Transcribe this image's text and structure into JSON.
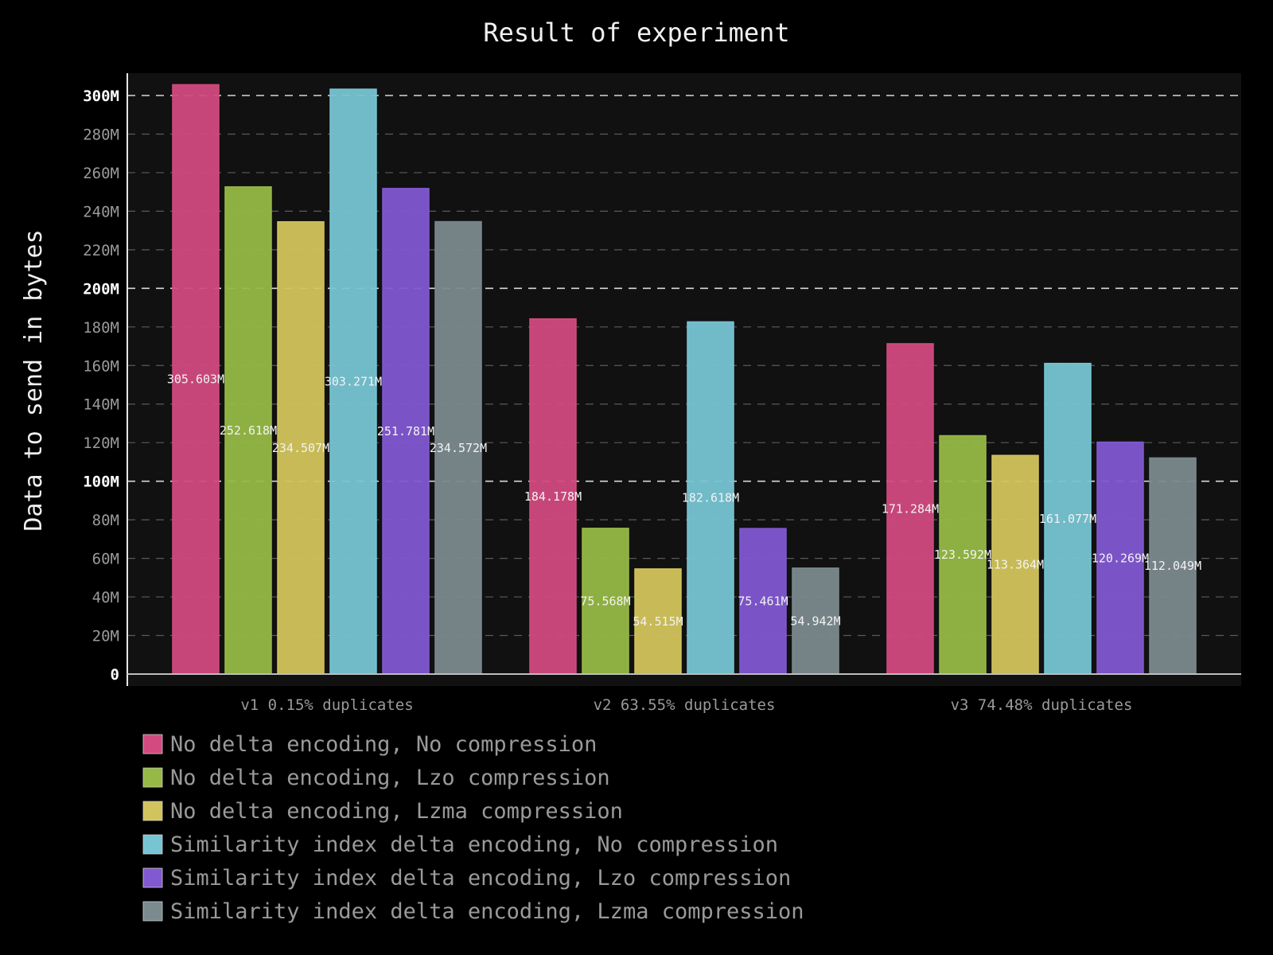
{
  "chart_data": {
    "type": "bar",
    "title": "Result of experiment",
    "ylabel": "Data to send in bytes",
    "xlabel": "",
    "categories": [
      "v1 0.15% duplicates",
      "v2 63.55% duplicates",
      "v3 74.48% duplicates"
    ],
    "ylim": [
      0,
      310000000
    ],
    "yticks": [
      0,
      20000000,
      40000000,
      60000000,
      80000000,
      100000000,
      120000000,
      140000000,
      160000000,
      180000000,
      200000000,
      220000000,
      240000000,
      260000000,
      280000000,
      300000000
    ],
    "ytick_labels": [
      "0",
      "20M",
      "40M",
      "60M",
      "80M",
      "100M",
      "120M",
      "140M",
      "160M",
      "180M",
      "200M",
      "220M",
      "240M",
      "260M",
      "280M",
      "300M"
    ],
    "major_yticks": [
      0,
      100000000,
      200000000,
      300000000
    ],
    "grid": true,
    "legend_position": "bottom",
    "series": [
      {
        "name": "No delta encoding, No compression",
        "color": "#d24a7f",
        "values": [
          305603000,
          184178000,
          171284000
        ],
        "labels": [
          "305.603M",
          "184.178M",
          "171.284M"
        ]
      },
      {
        "name": "No delta encoding, Lzo compression",
        "color": "#96b946",
        "values": [
          252618000,
          75568000,
          123592000
        ],
        "labels": [
          "252.618M",
          "75.568M",
          "123.592M"
        ]
      },
      {
        "name": "No delta encoding, Lzma compression",
        "color": "#d2c45c",
        "values": [
          234507000,
          54515000,
          113364000
        ],
        "labels": [
          "234.507M",
          "54.515M",
          "113.364M"
        ]
      },
      {
        "name": "Similarity index delta encoding, No compression",
        "color": "#77c4d3",
        "values": [
          303271000,
          182618000,
          161077000
        ],
        "labels": [
          "303.271M",
          "182.618M",
          "161.077M"
        ]
      },
      {
        "name": "Similarity index delta encoding, Lzo compression",
        "color": "#8159d1",
        "values": [
          251781000,
          75461000,
          120269000
        ],
        "labels": [
          "251.781M",
          "75.461M",
          "120.269M"
        ]
      },
      {
        "name": "Similarity index delta encoding, Lzma compression",
        "color": "#7b8a8e",
        "values": [
          234572000,
          54942000,
          112049000
        ],
        "labels": [
          "234.572M",
          "54.942M",
          "112.049M"
        ]
      }
    ]
  }
}
